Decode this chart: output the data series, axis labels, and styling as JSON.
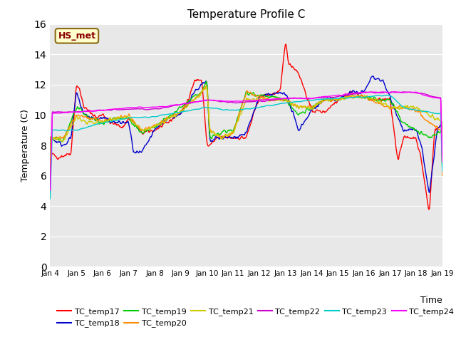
{
  "title": "Temperature Profile C",
  "ylabel": "Temperature (C)",
  "xlabel": "Time",
  "annotation_text": "HS_met",
  "annotation_color": "#8B0000",
  "annotation_bg": "#FFFFCC",
  "ylim": [
    0,
    16
  ],
  "yticks": [
    0,
    2,
    4,
    6,
    8,
    10,
    12,
    14,
    16
  ],
  "bg_color": "#E8E8E8",
  "series_colors": {
    "TC_temp17": "#FF0000",
    "TC_temp18": "#0000CD",
    "TC_temp19": "#00CC00",
    "TC_temp20": "#FF8C00",
    "TC_temp21": "#CCCC00",
    "TC_temp22": "#CC00CC",
    "TC_temp23": "#00CCCC",
    "TC_temp24": "#FF00FF"
  },
  "legend_order": [
    "TC_temp17",
    "TC_temp18",
    "TC_temp19",
    "TC_temp20",
    "TC_temp21",
    "TC_temp22",
    "TC_temp23",
    "TC_temp24"
  ],
  "figsize": [
    6.4,
    4.8
  ],
  "dpi": 100
}
